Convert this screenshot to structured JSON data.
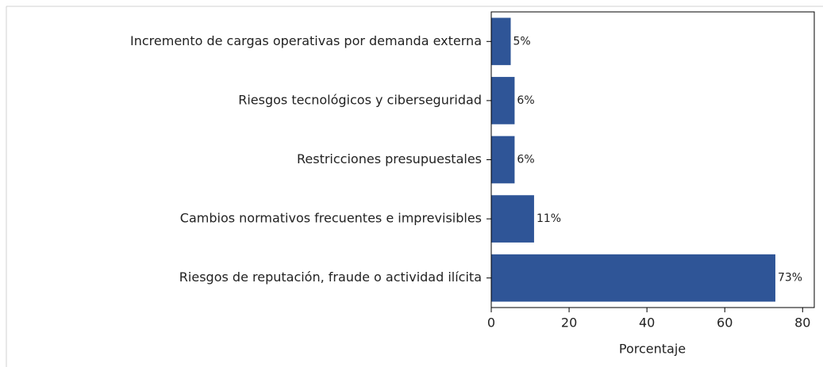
{
  "chart_data": {
    "type": "barh",
    "categories": [
      "Incremento de cargas operativas por demanda externa",
      "Riesgos tecnológicos y ciberseguridad",
      "Restricciones presupuestales",
      "Cambios normativos frecuentes e imprevisibles",
      "Riesgos de reputación, fraude o actividad ilícita"
    ],
    "values": [
      5,
      6,
      6,
      11,
      73
    ],
    "value_labels": [
      "5%",
      "6%",
      "6%",
      "11%",
      "73%"
    ],
    "color": "#2f5597",
    "xlabel": "Porcentaje",
    "xlim": [
      0,
      83
    ],
    "xticks": [
      0,
      20,
      40,
      60,
      80
    ]
  }
}
